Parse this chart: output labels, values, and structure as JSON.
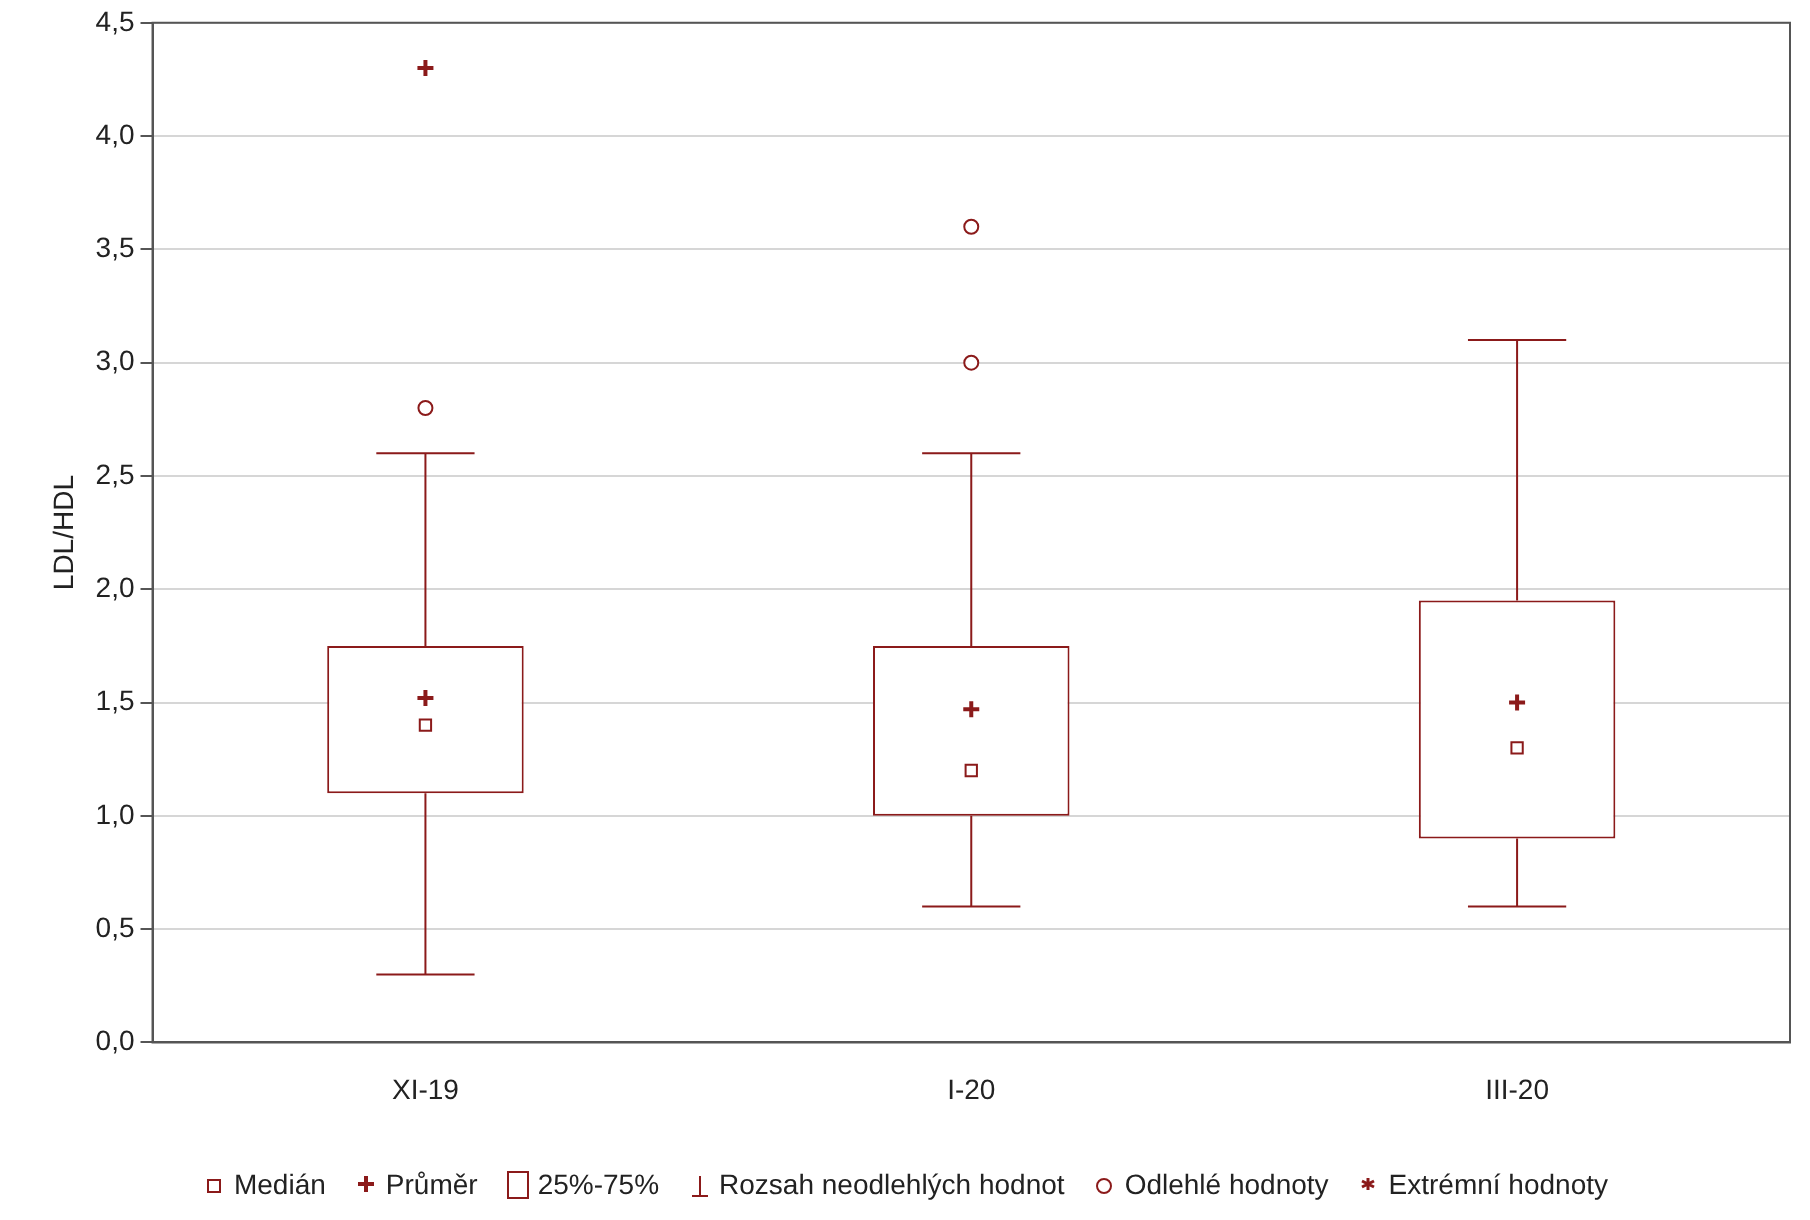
{
  "chart_data": {
    "type": "box",
    "ylabel": "LDL/HDL",
    "categories": [
      "XI-19",
      "I-20",
      "III-20"
    ],
    "color": "#8b1a1a",
    "boxes": [
      {
        "low": 0.3,
        "q1": 1.1,
        "median": 1.4,
        "q3": 1.75,
        "high": 2.6,
        "mean": 1.52,
        "outliers": [
          2.8
        ]
      },
      {
        "low": 0.6,
        "q1": 1.0,
        "median": 1.2,
        "q3": 1.75,
        "high": 2.6,
        "mean": 1.47,
        "outliers": [
          3.0,
          3.6
        ]
      },
      {
        "low": 0.6,
        "q1": 0.9,
        "median": 1.3,
        "q3": 1.95,
        "high": 3.1,
        "mean": 1.5
      }
    ],
    "series": [
      {
        "type": "scatter",
        "name": "Extrémní hodnoty",
        "color": "#8b1a1a",
        "marker": "cross",
        "x": [
          "XI-19"
        ],
        "values": [
          4.3
        ]
      }
    ],
    "annotations": [
      "Medián",
      "Průměr",
      "25%-75%",
      "Rozsah neodlehlých hodnot",
      "Odlehlé hodnoty"
    ],
    "ylim": [
      0,
      4.5
    ],
    "yticks": [
      {
        "value": 0,
        "label": "0,0"
      },
      {
        "value": 0.5,
        "label": "0,5"
      },
      {
        "value": 1,
        "label": "1,0"
      },
      {
        "value": 1.5,
        "label": "1,5"
      },
      {
        "value": 2,
        "label": "2,0"
      },
      {
        "value": 2.5,
        "label": "2,5"
      },
      {
        "value": 3,
        "label": "3,0"
      },
      {
        "value": 3.5,
        "label": "3,5"
      },
      {
        "value": 4,
        "label": "4,0"
      },
      {
        "value": 4.5,
        "label": "4,5"
      }
    ],
    "grid": "y",
    "legend": "bottom"
  }
}
